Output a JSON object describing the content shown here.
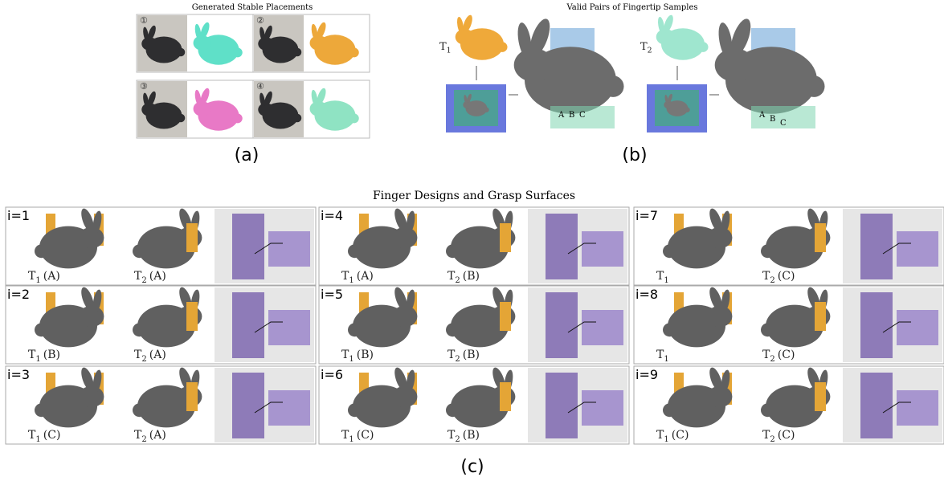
{
  "panel_a": {
    "title": "Generated Stable Placements",
    "placements": [
      "①",
      "②",
      "③",
      "④"
    ],
    "caption": "(a)"
  },
  "panel_b": {
    "title": "Valid Pairs of Fingertip Samples",
    "targets": [
      {
        "symbol": "T",
        "subscript": "1",
        "samples": [
          "A",
          "B",
          "C"
        ]
      },
      {
        "symbol": "T",
        "subscript": "2",
        "samples": [
          "A",
          "B",
          "C"
        ]
      }
    ],
    "caption": "(b)"
  },
  "panel_c": {
    "title": "Finger Designs and Grasp Surfaces",
    "designs": [
      {
        "index": "i=1",
        "t1": {
          "symbol": "T",
          "subscript": "1",
          "sample": "(A)"
        },
        "t2": {
          "symbol": "T",
          "subscript": "2",
          "sample": "(A)"
        }
      },
      {
        "index": "i=2",
        "t1": {
          "symbol": "T",
          "subscript": "1",
          "sample": "(B)"
        },
        "t2": {
          "symbol": "T",
          "subscript": "2",
          "sample": "(A)"
        }
      },
      {
        "index": "i=3",
        "t1": {
          "symbol": "T",
          "subscript": "1",
          "sample": "(C)"
        },
        "t2": {
          "symbol": "T",
          "subscript": "2",
          "sample": "(A)"
        }
      },
      {
        "index": "i=4",
        "t1": {
          "symbol": "T",
          "subscript": "1",
          "sample": "(A)"
        },
        "t2": {
          "symbol": "T",
          "subscript": "2",
          "sample": "(B)"
        }
      },
      {
        "index": "i=5",
        "t1": {
          "symbol": "T",
          "subscript": "1",
          "sample": "(B)"
        },
        "t2": {
          "symbol": "T",
          "subscript": "2",
          "sample": "(B)"
        }
      },
      {
        "index": "i=6",
        "t1": {
          "symbol": "T",
          "subscript": "1",
          "sample": "(C)"
        },
        "t2": {
          "symbol": "T",
          "subscript": "2",
          "sample": "(B)"
        }
      },
      {
        "index": "i=7",
        "t1": {
          "symbol": "T",
          "subscript": "1"
        },
        "t2": {
          "symbol": "T",
          "subscript": "2",
          "sample": "(C)"
        }
      },
      {
        "index": "i=8",
        "t1": {
          "symbol": "T",
          "subscript": "1"
        },
        "t2": {
          "symbol": "T",
          "subscript": "2",
          "sample": "(C)"
        }
      },
      {
        "index": "i=9",
        "t1": {
          "symbol": "T",
          "subscript": "1",
          "sample": "(C)"
        },
        "t2": {
          "symbol": "T",
          "subscript": "2",
          "sample": "(C)"
        }
      }
    ],
    "caption": "(c)"
  }
}
